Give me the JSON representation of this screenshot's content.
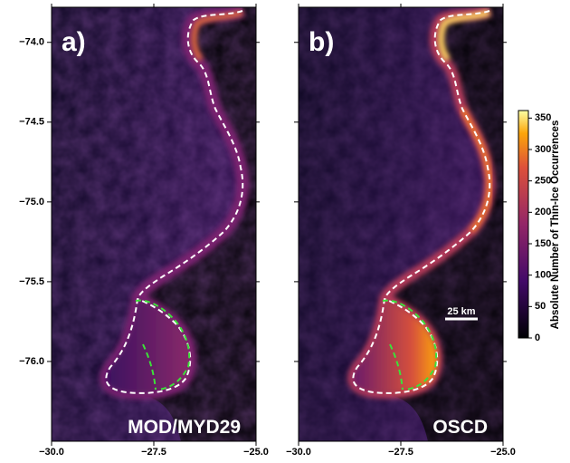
{
  "panels": [
    {
      "label": "a)",
      "title": "MOD/MYD29"
    },
    {
      "label": "b)",
      "title": "OSCD"
    }
  ],
  "axes": {
    "xlim": [
      -30,
      -25
    ],
    "ylim": [
      -76.5,
      -73.78
    ],
    "xticks": [
      {
        "value": -30,
        "label": "−30.0"
      },
      {
        "value": -27.5,
        "label": "−27.5"
      },
      {
        "value": -25,
        "label": "−25.0"
      }
    ],
    "yticks": [
      {
        "value": -74,
        "label": "−74.0"
      },
      {
        "value": -74.5,
        "label": "−74.5"
      },
      {
        "value": -75,
        "label": "−75.0"
      },
      {
        "value": -75.5,
        "label": "−75.5"
      },
      {
        "value": -76,
        "label": "−76.0"
      }
    ]
  },
  "colorbar": {
    "label": "Absolute Number of Thin-Ice Occurrences",
    "lim": [
      0,
      362
    ],
    "ticks": [
      0,
      50,
      100,
      150,
      200,
      250,
      300,
      350
    ]
  },
  "scale_bar": "25 km"
}
